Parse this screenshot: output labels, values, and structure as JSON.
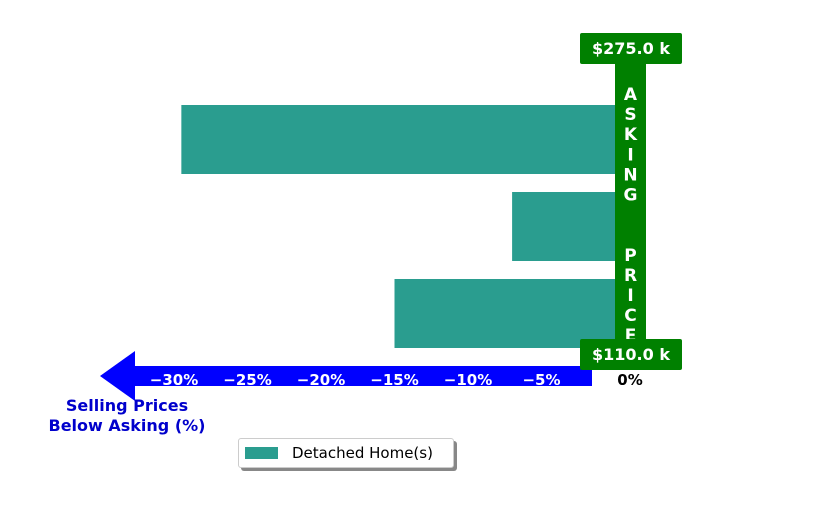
{
  "chart_data": {
    "type": "bar",
    "orientation": "horizontal",
    "categories": [
      "",
      "",
      ""
    ],
    "series": [
      {
        "name": "Detached Home(s)",
        "values": [
          -29.5,
          -7.0,
          -15.0
        ],
        "color": "#2a9d8f"
      }
    ],
    "xlim": [
      -33,
      0
    ],
    "x_ticks": [
      -30,
      -25,
      -20,
      -15,
      -10,
      -5,
      0
    ],
    "x_tick_labels": [
      "−30%",
      "−25%",
      "−20%",
      "−15%",
      "−10%",
      "−5%",
      "0%"
    ],
    "xlabel": "Selling Prices\nBelow Asking (%)",
    "asking_price_label": "ASKING  PRICE",
    "price_range": {
      "max_label": "$275.0 k",
      "min_label": "$110.0 k"
    },
    "legend": {
      "placement": "bottom-left",
      "entries": [
        "Detached Home(s)"
      ]
    },
    "grid": false
  },
  "colors": {
    "bar": "#2a9d8f",
    "axis_arrow": "#0000ff",
    "xlabel": "#0000cc",
    "asking_bar": "#008000",
    "tick_text_on_arrow": "#ffffff",
    "zero_tick": "#000000"
  }
}
